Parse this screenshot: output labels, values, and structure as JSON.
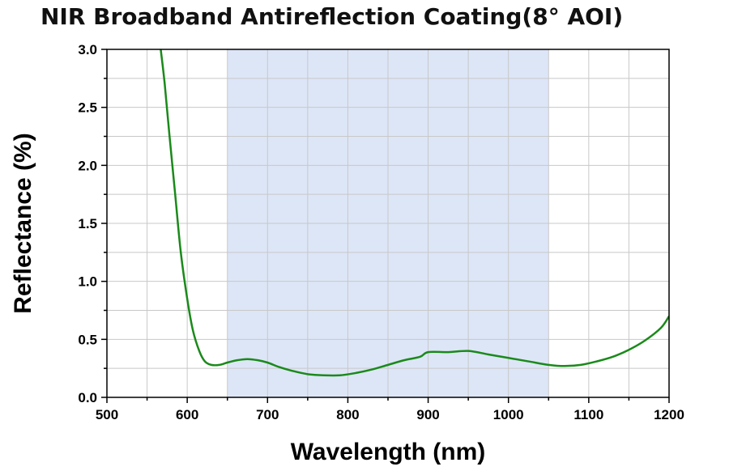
{
  "chart_data": {
    "type": "line",
    "title": "NIR Broadband Antireflection Coating(8° AOI)",
    "xlabel": "Wavelength (nm)",
    "ylabel": "Reflectance (%)",
    "xlim": [
      500,
      1200
    ],
    "ylim": [
      0,
      3.0
    ],
    "xticks": [
      "500",
      "600",
      "700",
      "800",
      "900",
      "1000",
      "1100",
      "1200"
    ],
    "yticks": [
      "0.0",
      "0.5",
      "1.0",
      "1.5",
      "2.0",
      "2.5",
      "3.0"
    ],
    "grid": true,
    "highlight_band": {
      "x_start": 650,
      "x_end": 1050,
      "color": "#dde6f7"
    },
    "series": [
      {
        "color": "#1a8a1a",
        "x": [
          567,
          572,
          578,
          585,
          592,
          600,
          607,
          615,
          622,
          630,
          640,
          650,
          662,
          675,
          688,
          700,
          715,
          730,
          750,
          770,
          790,
          810,
          830,
          850,
          870,
          890,
          900,
          925,
          950,
          975,
          1000,
          1025,
          1050,
          1070,
          1090,
          1110,
          1130,
          1150,
          1170,
          1190,
          1200
        ],
        "y": [
          3.0,
          2.7,
          2.25,
          1.75,
          1.25,
          0.85,
          0.58,
          0.4,
          0.31,
          0.28,
          0.28,
          0.3,
          0.32,
          0.33,
          0.32,
          0.3,
          0.26,
          0.23,
          0.2,
          0.19,
          0.19,
          0.21,
          0.24,
          0.28,
          0.32,
          0.35,
          0.39,
          0.39,
          0.4,
          0.37,
          0.34,
          0.31,
          0.28,
          0.27,
          0.28,
          0.31,
          0.35,
          0.41,
          0.49,
          0.6,
          0.7
        ]
      }
    ]
  }
}
